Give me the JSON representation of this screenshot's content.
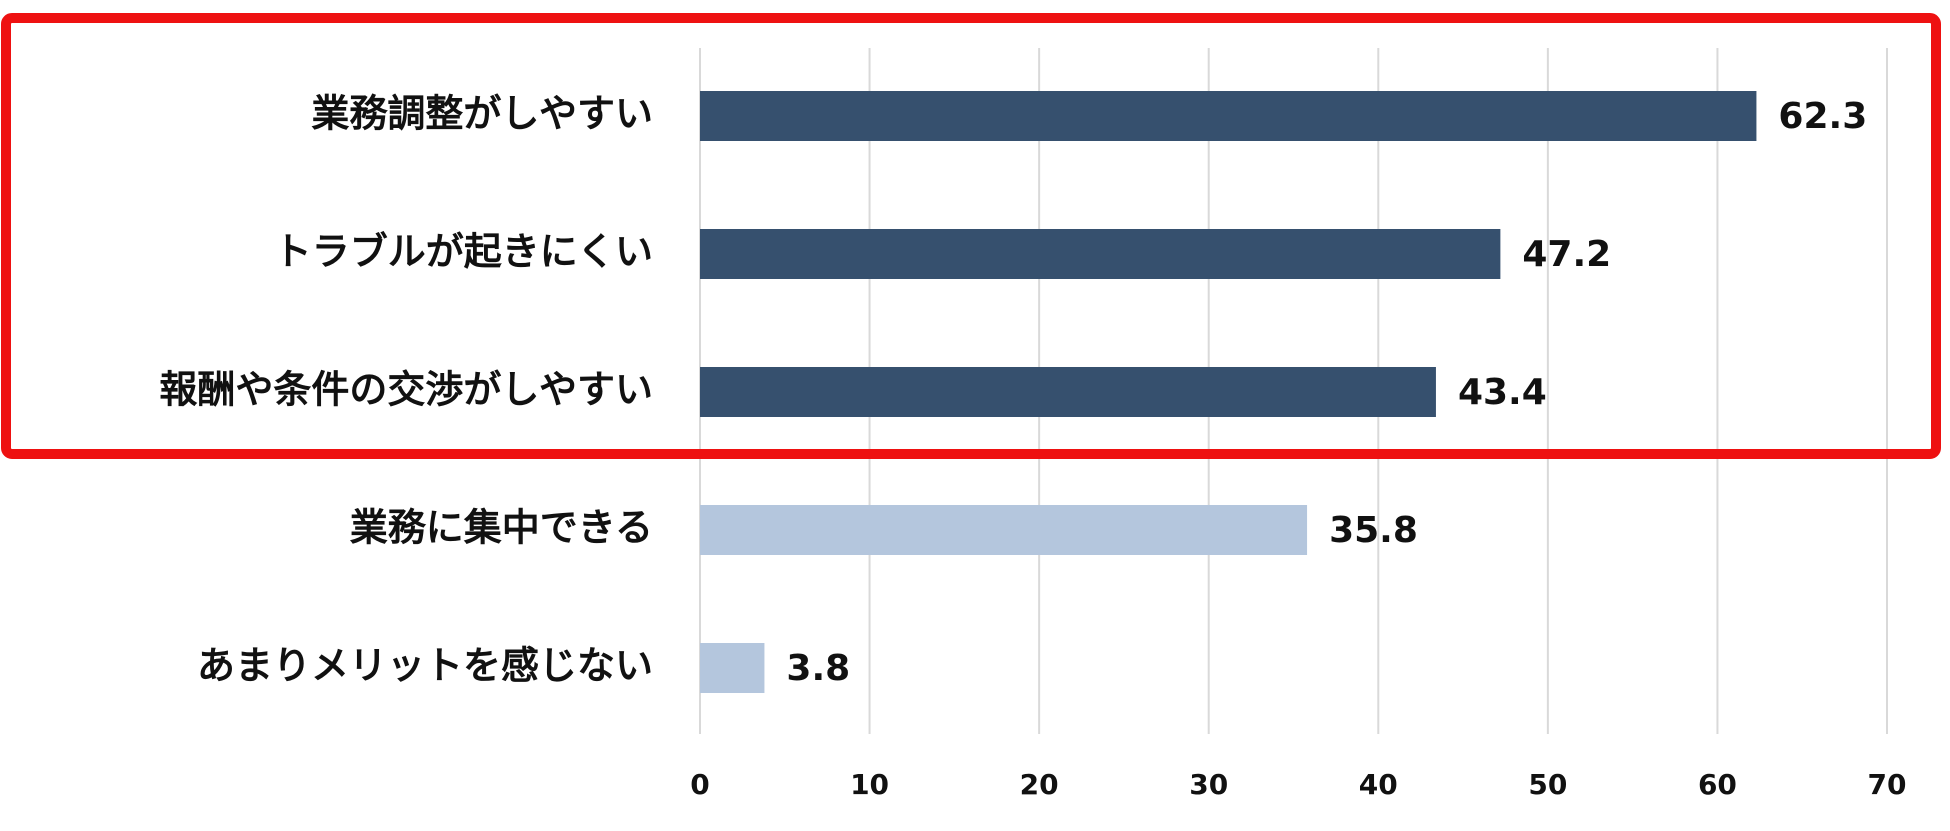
{
  "chart_data": {
    "type": "bar",
    "orientation": "horizontal",
    "categories": [
      "業務調整がしやすい",
      "トラブルが起きにくい",
      "報酬や条件の交渉がしやすい",
      "業務に集中できる",
      "あまりメリットを感じない"
    ],
    "values": [
      62.3,
      47.2,
      43.4,
      35.8,
      3.8
    ],
    "colors": [
      "#36506e",
      "#36506e",
      "#36506e",
      "#b4c6dd",
      "#b4c6dd"
    ],
    "xlim": [
      0,
      70
    ],
    "xticks": [
      0,
      10,
      20,
      30,
      40,
      50,
      60,
      70
    ],
    "grid": true
  }
}
